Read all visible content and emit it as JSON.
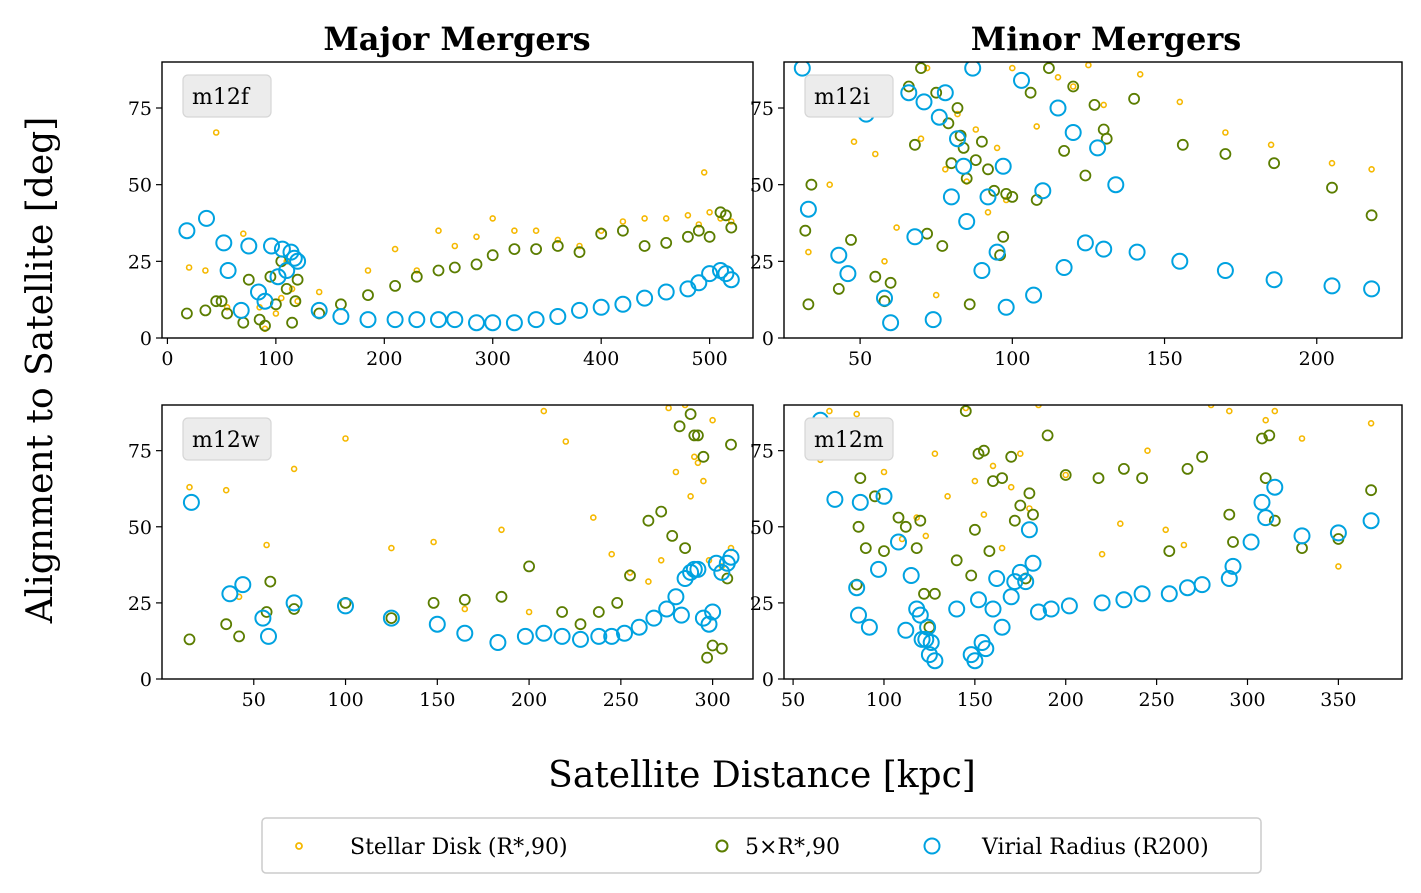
{
  "figure": {
    "col_titles": [
      "Major Mergers",
      "Minor Mergers"
    ],
    "ylabel": "Alignment to Satellite [deg]",
    "xlabel": "Satellite Distance [kpc]"
  },
  "legend": {
    "items": [
      {
        "key": "disk",
        "label": "Stellar Disk (R*,90)",
        "color": "#f5b800"
      },
      {
        "key": "five",
        "label": "5×R*,90",
        "color": "#5b7d00"
      },
      {
        "key": "vir",
        "label": "Virial Radius (R200)",
        "color": "#00a2e0"
      }
    ]
  },
  "colors": {
    "disk": "#f5b800",
    "five": "#5b7d00",
    "vir": "#00a2e0"
  },
  "chart_data": [
    {
      "type": "scatter",
      "panel_label": "m12f",
      "xlim": [
        -5,
        540
      ],
      "ylim": [
        0,
        90
      ],
      "xticks": [
        0,
        100,
        200,
        300,
        400,
        500
      ],
      "yticks": [
        0,
        25,
        50,
        75
      ],
      "series": [
        {
          "key": "disk",
          "x": [
            20,
            35,
            45,
            55,
            70,
            85,
            90,
            100,
            105,
            110,
            115,
            120,
            140,
            185,
            210,
            230,
            250,
            265,
            285,
            300,
            320,
            340,
            360,
            380,
            400,
            420,
            440,
            460,
            480,
            490,
            495,
            500,
            510,
            520
          ],
          "y": [
            23,
            22,
            67,
            10,
            34,
            10,
            3,
            8,
            13,
            25,
            16,
            12,
            15,
            22,
            29,
            22,
            35,
            30,
            33,
            39,
            35,
            35,
            32,
            30,
            35,
            38,
            39,
            39,
            40,
            37,
            54,
            41,
            39,
            38
          ]
        },
        {
          "key": "five",
          "x": [
            18,
            35,
            45,
            50,
            55,
            70,
            75,
            85,
            90,
            95,
            100,
            105,
            110,
            115,
            118,
            120,
            140,
            160,
            185,
            210,
            230,
            250,
            265,
            285,
            300,
            320,
            340,
            360,
            380,
            400,
            420,
            440,
            460,
            480,
            490,
            500,
            510,
            515,
            520
          ],
          "y": [
            8,
            9,
            12,
            12,
            8,
            5,
            19,
            6,
            4,
            20,
            11,
            25,
            16,
            5,
            12,
            19,
            8,
            11,
            14,
            17,
            20,
            22,
            23,
            24,
            27,
            29,
            29,
            30,
            28,
            34,
            35,
            30,
            31,
            33,
            35,
            33,
            41,
            40,
            36
          ]
        },
        {
          "key": "vir",
          "x": [
            18,
            36,
            52,
            56,
            68,
            75,
            84,
            90,
            96,
            102,
            106,
            110,
            114,
            117,
            120,
            140,
            160,
            185,
            210,
            230,
            250,
            265,
            285,
            300,
            320,
            340,
            360,
            380,
            400,
            420,
            440,
            460,
            480,
            490,
            500,
            510,
            515,
            520
          ],
          "y": [
            35,
            39,
            31,
            22,
            9,
            30,
            15,
            12,
            30,
            20,
            29,
            22,
            28,
            26,
            25,
            9,
            7,
            6,
            6,
            6,
            6,
            6,
            5,
            5,
            5,
            6,
            7,
            9,
            10,
            11,
            13,
            15,
            16,
            18,
            21,
            22,
            21,
            19
          ]
        }
      ]
    },
    {
      "type": "scatter",
      "panel_label": "m12i",
      "xlim": [
        25,
        228
      ],
      "ylim": [
        0,
        90
      ],
      "xticks": [
        50,
        100,
        150,
        200
      ],
      "yticks": [
        0,
        25,
        50,
        75
      ],
      "series": [
        {
          "key": "disk",
          "x": [
            33,
            40,
            48,
            55,
            58,
            62,
            70,
            72,
            75,
            78,
            82,
            85,
            88,
            92,
            95,
            98,
            100,
            108,
            115,
            120,
            125,
            130,
            142,
            155,
            170,
            185,
            205,
            218
          ],
          "y": [
            28,
            50,
            64,
            60,
            25,
            36,
            65,
            88,
            14,
            55,
            73,
            51,
            68,
            41,
            62,
            45,
            88,
            69,
            85,
            82,
            89,
            76,
            86,
            77,
            67,
            63,
            57,
            55
          ]
        },
        {
          "key": "five",
          "x": [
            32,
            33,
            34,
            43,
            47,
            55,
            58,
            60,
            66,
            68,
            70,
            72,
            75,
            77,
            79,
            80,
            82,
            83,
            84,
            85,
            86,
            88,
            90,
            92,
            94,
            96,
            97,
            98,
            100,
            106,
            108,
            112,
            117,
            120,
            124,
            127,
            130,
            131,
            140,
            156,
            170,
            186,
            205,
            218
          ],
          "y": [
            35,
            11,
            50,
            16,
            32,
            20,
            12,
            18,
            82,
            63,
            88,
            34,
            80,
            30,
            70,
            57,
            75,
            66,
            62,
            52,
            11,
            58,
            64,
            55,
            48,
            27,
            33,
            47,
            46,
            80,
            45,
            88,
            61,
            82,
            53,
            76,
            68,
            65,
            78,
            63,
            60,
            57,
            49,
            40
          ]
        },
        {
          "key": "vir",
          "x": [
            31,
            33,
            43,
            46,
            52,
            58,
            60,
            66,
            68,
            71,
            74,
            76,
            78,
            80,
            82,
            84,
            85,
            87,
            90,
            92,
            95,
            97,
            98,
            103,
            107,
            110,
            115,
            117,
            120,
            124,
            128,
            130,
            134,
            141,
            155,
            170,
            186,
            205,
            218
          ],
          "y": [
            88,
            42,
            27,
            21,
            73,
            13,
            5,
            80,
            33,
            77,
            6,
            72,
            80,
            46,
            65,
            56,
            38,
            88,
            22,
            46,
            28,
            56,
            10,
            84,
            14,
            48,
            75,
            23,
            67,
            31,
            62,
            29,
            50,
            28,
            25,
            22,
            19,
            17,
            16
          ]
        }
      ]
    },
    {
      "type": "scatter",
      "panel_label": "m12w",
      "xlim": [
        0,
        322
      ],
      "ylim": [
        0,
        90
      ],
      "xticks": [
        50,
        100,
        150,
        200,
        250,
        300
      ],
      "yticks": [
        0,
        25,
        50,
        75
      ],
      "series": [
        {
          "key": "disk",
          "x": [
            15,
            35,
            42,
            57,
            72,
            100,
            125,
            148,
            165,
            185,
            200,
            208,
            220,
            235,
            245,
            255,
            265,
            272,
            276,
            280,
            285,
            288,
            290,
            292,
            295,
            298,
            300,
            305,
            310
          ],
          "y": [
            63,
            62,
            27,
            44,
            69,
            79,
            43,
            45,
            23,
            49,
            22,
            88,
            78,
            53,
            41,
            35,
            32,
            39,
            89,
            68,
            90,
            60,
            73,
            71,
            65,
            39,
            85,
            37,
            43
          ]
        },
        {
          "key": "five",
          "x": [
            15,
            35,
            42,
            57,
            59,
            72,
            100,
            125,
            148,
            165,
            185,
            200,
            218,
            228,
            238,
            248,
            255,
            265,
            272,
            278,
            282,
            285,
            288,
            290,
            292,
            295,
            297,
            300,
            305,
            308,
            310
          ],
          "y": [
            13,
            18,
            14,
            22,
            32,
            23,
            25,
            20,
            25,
            26,
            27,
            37,
            22,
            18,
            22,
            25,
            34,
            52,
            55,
            47,
            83,
            43,
            87,
            80,
            80,
            73,
            7,
            11,
            10,
            33,
            77
          ]
        },
        {
          "key": "vir",
          "x": [
            16,
            37,
            44,
            55,
            58,
            72,
            100,
            125,
            150,
            165,
            183,
            198,
            208,
            218,
            228,
            238,
            245,
            252,
            260,
            268,
            275,
            280,
            283,
            285,
            288,
            290,
            292,
            295,
            298,
            300,
            302,
            305,
            308,
            310
          ],
          "y": [
            58,
            28,
            31,
            20,
            14,
            25,
            24,
            20,
            18,
            15,
            12,
            14,
            15,
            14,
            13,
            14,
            14,
            15,
            17,
            20,
            23,
            27,
            21,
            33,
            35,
            36,
            36,
            20,
            18,
            22,
            38,
            35,
            38,
            40
          ]
        }
      ]
    },
    {
      "type": "scatter",
      "panel_label": "m12m",
      "xlim": [
        45,
        385
      ],
      "ylim": [
        0,
        90
      ],
      "xticks": [
        50,
        100,
        150,
        200,
        250,
        300,
        350
      ],
      "yticks": [
        0,
        25,
        50,
        75
      ],
      "series": [
        {
          "key": "disk",
          "x": [
            65,
            70,
            85,
            95,
            100,
            110,
            118,
            123,
            128,
            135,
            145,
            150,
            155,
            160,
            165,
            170,
            175,
            180,
            185,
            200,
            220,
            230,
            245,
            255,
            265,
            280,
            290,
            310,
            315,
            330,
            350,
            368
          ],
          "y": [
            72,
            88,
            87,
            74,
            68,
            46,
            53,
            47,
            74,
            60,
            89,
            65,
            54,
            70,
            43,
            63,
            74,
            56,
            90,
            67,
            41,
            51,
            75,
            49,
            44,
            90,
            88,
            85,
            88,
            79,
            37,
            84
          ]
        },
        {
          "key": "five",
          "x": [
            85,
            86,
            87,
            90,
            95,
            100,
            108,
            112,
            118,
            120,
            122,
            125,
            128,
            140,
            145,
            148,
            150,
            152,
            155,
            158,
            160,
            165,
            170,
            172,
            175,
            178,
            180,
            182,
            190,
            200,
            218,
            232,
            242,
            257,
            267,
            275,
            290,
            292,
            308,
            310,
            312,
            315,
            330,
            350,
            368
          ],
          "y": [
            31,
            50,
            66,
            43,
            60,
            42,
            53,
            50,
            43,
            52,
            28,
            17,
            28,
            39,
            88,
            34,
            49,
            74,
            75,
            42,
            65,
            66,
            73,
            52,
            57,
            33,
            61,
            54,
            80,
            67,
            66,
            69,
            66,
            42,
            69,
            73,
            54,
            45,
            79,
            66,
            80,
            52,
            43,
            46,
            62
          ]
        },
        {
          "key": "vir",
          "x": [
            65,
            73,
            85,
            86,
            87,
            92,
            97,
            100,
            108,
            112,
            115,
            118,
            120,
            121,
            123,
            124,
            125,
            126,
            128,
            140,
            148,
            150,
            152,
            154,
            156,
            160,
            162,
            165,
            170,
            172,
            175,
            178,
            180,
            182,
            185,
            192,
            202,
            220,
            232,
            242,
            257,
            267,
            275,
            290,
            292,
            302,
            308,
            310,
            315,
            330,
            350,
            368
          ],
          "y": [
            85,
            59,
            30,
            21,
            58,
            17,
            36,
            60,
            45,
            16,
            34,
            23,
            21,
            13,
            13,
            17,
            8,
            12,
            6,
            23,
            8,
            6,
            26,
            12,
            10,
            23,
            33,
            17,
            27,
            32,
            35,
            32,
            49,
            38,
            22,
            23,
            24,
            25,
            26,
            28,
            28,
            30,
            31,
            33,
            37,
            45,
            58,
            53,
            63,
            47,
            48,
            52
          ]
        }
      ]
    }
  ]
}
